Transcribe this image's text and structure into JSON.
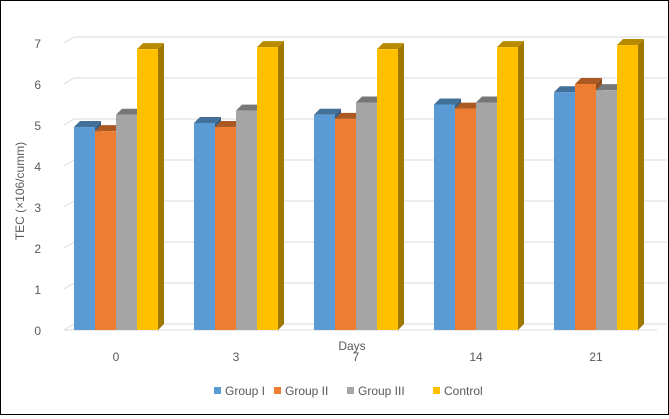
{
  "chart_data": {
    "type": "bar",
    "title": "",
    "xlabel": "Days",
    "ylabel": "TEC (×106/cumm)",
    "categories": [
      "0",
      "3",
      "7",
      "14",
      "21"
    ],
    "ylim": [
      0,
      7
    ],
    "yticks": [
      "0",
      "1",
      "2",
      "3",
      "4",
      "5",
      "6",
      "7"
    ],
    "grid": true,
    "legend_position": "bottom",
    "series": [
      {
        "name": "Group I",
        "color": "#5B9BD5",
        "values": [
          4.95,
          5.05,
          5.25,
          5.5,
          5.8
        ]
      },
      {
        "name": "Group II",
        "color": "#ED7D31",
        "values": [
          4.85,
          4.95,
          5.15,
          5.4,
          6.0
        ]
      },
      {
        "name": "Group III",
        "color": "#A5A5A5",
        "values": [
          5.25,
          5.35,
          5.55,
          5.55,
          5.85
        ]
      },
      {
        "name": "Control",
        "color": "#FFC000",
        "values": [
          6.85,
          6.9,
          6.85,
          6.9,
          6.95
        ]
      }
    ]
  }
}
